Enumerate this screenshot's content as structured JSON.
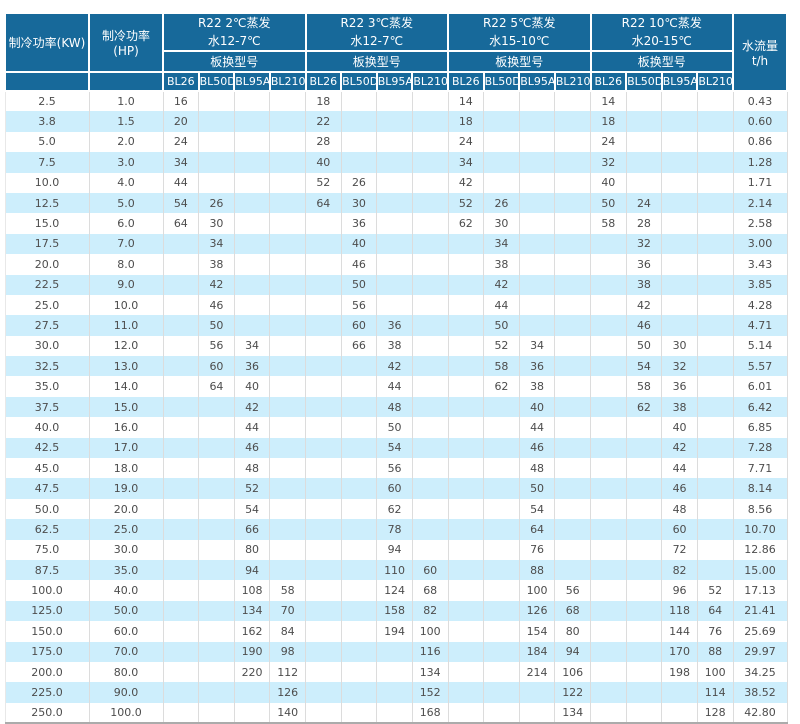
{
  "colors": {
    "header_bg": "#17699A",
    "stripe": "#CDEEFC",
    "cell_text": "#4D4D4D",
    "grid": "#DCDCDC",
    "bottom_border": "#ABABAB"
  },
  "header": {
    "col_kw": "制冷功率(KW)",
    "col_hp": "制冷功率(HP)",
    "col_flow": "水流量t/h",
    "subheader": "板换型号",
    "models": [
      "BL26",
      "BL50D",
      "BL95A",
      "BL210"
    ],
    "groups": [
      {
        "line1": "R22 2℃蒸发",
        "line2": "水12-7℃"
      },
      {
        "line1": "R22 3℃蒸发",
        "line2": "水12-7℃"
      },
      {
        "line1": "R22 5℃蒸发",
        "line2": "水15-10℃"
      },
      {
        "line1": "R22 10℃蒸发",
        "line2": "水20-15℃"
      }
    ]
  },
  "table": {
    "rows": [
      {
        "kw": "2.5",
        "hp": "1.0",
        "g1": [
          "16",
          "",
          "",
          ""
        ],
        "g2": [
          "18",
          "",
          "",
          ""
        ],
        "g3": [
          "14",
          "",
          "",
          ""
        ],
        "g4": [
          "14",
          "",
          "",
          ""
        ],
        "flow": "0.43"
      },
      {
        "kw": "3.8",
        "hp": "1.5",
        "g1": [
          "20",
          "",
          "",
          ""
        ],
        "g2": [
          "22",
          "",
          "",
          ""
        ],
        "g3": [
          "18",
          "",
          "",
          ""
        ],
        "g4": [
          "18",
          "",
          "",
          ""
        ],
        "flow": "0.60"
      },
      {
        "kw": "5.0",
        "hp": "2.0",
        "g1": [
          "24",
          "",
          "",
          ""
        ],
        "g2": [
          "28",
          "",
          "",
          ""
        ],
        "g3": [
          "24",
          "",
          "",
          ""
        ],
        "g4": [
          "24",
          "",
          "",
          ""
        ],
        "flow": "0.86"
      },
      {
        "kw": "7.5",
        "hp": "3.0",
        "g1": [
          "34",
          "",
          "",
          ""
        ],
        "g2": [
          "40",
          "",
          "",
          ""
        ],
        "g3": [
          "34",
          "",
          "",
          ""
        ],
        "g4": [
          "32",
          "",
          "",
          ""
        ],
        "flow": "1.28"
      },
      {
        "kw": "10.0",
        "hp": "4.0",
        "g1": [
          "44",
          "",
          "",
          ""
        ],
        "g2": [
          "52",
          "26",
          "",
          ""
        ],
        "g3": [
          "42",
          "",
          "",
          ""
        ],
        "g4": [
          "40",
          "",
          "",
          ""
        ],
        "flow": "1.71"
      },
      {
        "kw": "12.5",
        "hp": "5.0",
        "g1": [
          "54",
          "26",
          "",
          ""
        ],
        "g2": [
          "64",
          "30",
          "",
          ""
        ],
        "g3": [
          "52",
          "26",
          "",
          ""
        ],
        "g4": [
          "50",
          "24",
          "",
          ""
        ],
        "flow": "2.14"
      },
      {
        "kw": "15.0",
        "hp": "6.0",
        "g1": [
          "64",
          "30",
          "",
          ""
        ],
        "g2": [
          "",
          "36",
          "",
          ""
        ],
        "g3": [
          "62",
          "30",
          "",
          ""
        ],
        "g4": [
          "58",
          "28",
          "",
          ""
        ],
        "flow": "2.58"
      },
      {
        "kw": "17.5",
        "hp": "7.0",
        "g1": [
          "",
          "34",
          "",
          ""
        ],
        "g2": [
          "",
          "40",
          "",
          ""
        ],
        "g3": [
          "",
          "34",
          "",
          ""
        ],
        "g4": [
          "",
          "32",
          "",
          ""
        ],
        "flow": "3.00"
      },
      {
        "kw": "20.0",
        "hp": "8.0",
        "g1": [
          "",
          "38",
          "",
          ""
        ],
        "g2": [
          "",
          "46",
          "",
          ""
        ],
        "g3": [
          "",
          "38",
          "",
          ""
        ],
        "g4": [
          "",
          "36",
          "",
          ""
        ],
        "flow": "3.43"
      },
      {
        "kw": "22.5",
        "hp": "9.0",
        "g1": [
          "",
          "42",
          "",
          ""
        ],
        "g2": [
          "",
          "50",
          "",
          ""
        ],
        "g3": [
          "",
          "42",
          "",
          ""
        ],
        "g4": [
          "",
          "38",
          "",
          ""
        ],
        "flow": "3.85"
      },
      {
        "kw": "25.0",
        "hp": "10.0",
        "g1": [
          "",
          "46",
          "",
          ""
        ],
        "g2": [
          "",
          "56",
          "",
          ""
        ],
        "g3": [
          "",
          "44",
          "",
          ""
        ],
        "g4": [
          "",
          "42",
          "",
          ""
        ],
        "flow": "4.28"
      },
      {
        "kw": "27.5",
        "hp": "11.0",
        "g1": [
          "",
          "50",
          "",
          ""
        ],
        "g2": [
          "",
          "60",
          "36",
          ""
        ],
        "g3": [
          "",
          "50",
          "",
          ""
        ],
        "g4": [
          "",
          "46",
          "",
          ""
        ],
        "flow": "4.71"
      },
      {
        "kw": "30.0",
        "hp": "12.0",
        "g1": [
          "",
          "56",
          "34",
          ""
        ],
        "g2": [
          "",
          "66",
          "38",
          ""
        ],
        "g3": [
          "",
          "52",
          "34",
          ""
        ],
        "g4": [
          "",
          "50",
          "30",
          ""
        ],
        "flow": "5.14"
      },
      {
        "kw": "32.5",
        "hp": "13.0",
        "g1": [
          "",
          "60",
          "36",
          ""
        ],
        "g2": [
          "",
          "",
          "42",
          ""
        ],
        "g3": [
          "",
          "58",
          "36",
          ""
        ],
        "g4": [
          "",
          "54",
          "32",
          ""
        ],
        "flow": "5.57"
      },
      {
        "kw": "35.0",
        "hp": "14.0",
        "g1": [
          "",
          "64",
          "40",
          ""
        ],
        "g2": [
          "",
          "",
          "44",
          ""
        ],
        "g3": [
          "",
          "62",
          "38",
          ""
        ],
        "g4": [
          "",
          "58",
          "36",
          ""
        ],
        "flow": "6.01"
      },
      {
        "kw": "37.5",
        "hp": "15.0",
        "g1": [
          "",
          "",
          "42",
          ""
        ],
        "g2": [
          "",
          "",
          "48",
          ""
        ],
        "g3": [
          "",
          "",
          "40",
          ""
        ],
        "g4": [
          "",
          "62",
          "38",
          ""
        ],
        "flow": "6.42"
      },
      {
        "kw": "40.0",
        "hp": "16.0",
        "g1": [
          "",
          "",
          "44",
          ""
        ],
        "g2": [
          "",
          "",
          "50",
          ""
        ],
        "g3": [
          "",
          "",
          "44",
          ""
        ],
        "g4": [
          "",
          "",
          "40",
          ""
        ],
        "flow": "6.85"
      },
      {
        "kw": "42.5",
        "hp": "17.0",
        "g1": [
          "",
          "",
          "46",
          ""
        ],
        "g2": [
          "",
          "",
          "54",
          ""
        ],
        "g3": [
          "",
          "",
          "46",
          ""
        ],
        "g4": [
          "",
          "",
          "42",
          ""
        ],
        "flow": "7.28"
      },
      {
        "kw": "45.0",
        "hp": "18.0",
        "g1": [
          "",
          "",
          "48",
          ""
        ],
        "g2": [
          "",
          "",
          "56",
          ""
        ],
        "g3": [
          "",
          "",
          "48",
          ""
        ],
        "g4": [
          "",
          "",
          "44",
          ""
        ],
        "flow": "7.71"
      },
      {
        "kw": "47.5",
        "hp": "19.0",
        "g1": [
          "",
          "",
          "52",
          ""
        ],
        "g2": [
          "",
          "",
          "60",
          ""
        ],
        "g3": [
          "",
          "",
          "50",
          ""
        ],
        "g4": [
          "",
          "",
          "46",
          ""
        ],
        "flow": "8.14"
      },
      {
        "kw": "50.0",
        "hp": "20.0",
        "g1": [
          "",
          "",
          "54",
          ""
        ],
        "g2": [
          "",
          "",
          "62",
          ""
        ],
        "g3": [
          "",
          "",
          "54",
          ""
        ],
        "g4": [
          "",
          "",
          "48",
          ""
        ],
        "flow": "8.56"
      },
      {
        "kw": "62.5",
        "hp": "25.0",
        "g1": [
          "",
          "",
          "66",
          ""
        ],
        "g2": [
          "",
          "",
          "78",
          ""
        ],
        "g3": [
          "",
          "",
          "64",
          ""
        ],
        "g4": [
          "",
          "",
          "60",
          ""
        ],
        "flow": "10.70"
      },
      {
        "kw": "75.0",
        "hp": "30.0",
        "g1": [
          "",
          "",
          "80",
          ""
        ],
        "g2": [
          "",
          "",
          "94",
          ""
        ],
        "g3": [
          "",
          "",
          "76",
          ""
        ],
        "g4": [
          "",
          "",
          "72",
          ""
        ],
        "flow": "12.86"
      },
      {
        "kw": "87.5",
        "hp": "35.0",
        "g1": [
          "",
          "",
          "94",
          ""
        ],
        "g2": [
          "",
          "",
          "110",
          "60"
        ],
        "g3": [
          "",
          "",
          "88",
          ""
        ],
        "g4": [
          "",
          "",
          "82",
          ""
        ],
        "flow": "15.00"
      },
      {
        "kw": "100.0",
        "hp": "40.0",
        "g1": [
          "",
          "",
          "108",
          "58"
        ],
        "g2": [
          "",
          "",
          "124",
          "68"
        ],
        "g3": [
          "",
          "",
          "100",
          "56"
        ],
        "g4": [
          "",
          "",
          "96",
          "52"
        ],
        "flow": "17.13"
      },
      {
        "kw": "125.0",
        "hp": "50.0",
        "g1": [
          "",
          "",
          "134",
          "70"
        ],
        "g2": [
          "",
          "",
          "158",
          "82"
        ],
        "g3": [
          "",
          "",
          "126",
          "68"
        ],
        "g4": [
          "",
          "",
          "118",
          "64"
        ],
        "flow": "21.41"
      },
      {
        "kw": "150.0",
        "hp": "60.0",
        "g1": [
          "",
          "",
          "162",
          "84"
        ],
        "g2": [
          "",
          "",
          "194",
          "100"
        ],
        "g3": [
          "",
          "",
          "154",
          "80"
        ],
        "g4": [
          "",
          "",
          "144",
          "76"
        ],
        "flow": "25.69"
      },
      {
        "kw": "175.0",
        "hp": "70.0",
        "g1": [
          "",
          "",
          "190",
          "98"
        ],
        "g2": [
          "",
          "",
          "",
          "116"
        ],
        "g3": [
          "",
          "",
          "184",
          "94"
        ],
        "g4": [
          "",
          "",
          "170",
          "88"
        ],
        "flow": "29.97"
      },
      {
        "kw": "200.0",
        "hp": "80.0",
        "g1": [
          "",
          "",
          "220",
          "112"
        ],
        "g2": [
          "",
          "",
          "",
          "134"
        ],
        "g3": [
          "",
          "",
          "214",
          "106"
        ],
        "g4": [
          "",
          "",
          "198",
          "100"
        ],
        "flow": "34.25"
      },
      {
        "kw": "225.0",
        "hp": "90.0",
        "g1": [
          "",
          "",
          "",
          "126"
        ],
        "g2": [
          "",
          "",
          "",
          "152"
        ],
        "g3": [
          "",
          "",
          "",
          "122"
        ],
        "g4": [
          "",
          "",
          "",
          "114"
        ],
        "flow": "38.52"
      },
      {
        "kw": "250.0",
        "hp": "100.0",
        "g1": [
          "",
          "",
          "",
          "140"
        ],
        "g2": [
          "",
          "",
          "",
          "168"
        ],
        "g3": [
          "",
          "",
          "",
          "134"
        ],
        "g4": [
          "",
          "",
          "",
          "128"
        ],
        "flow": "42.80"
      }
    ]
  }
}
